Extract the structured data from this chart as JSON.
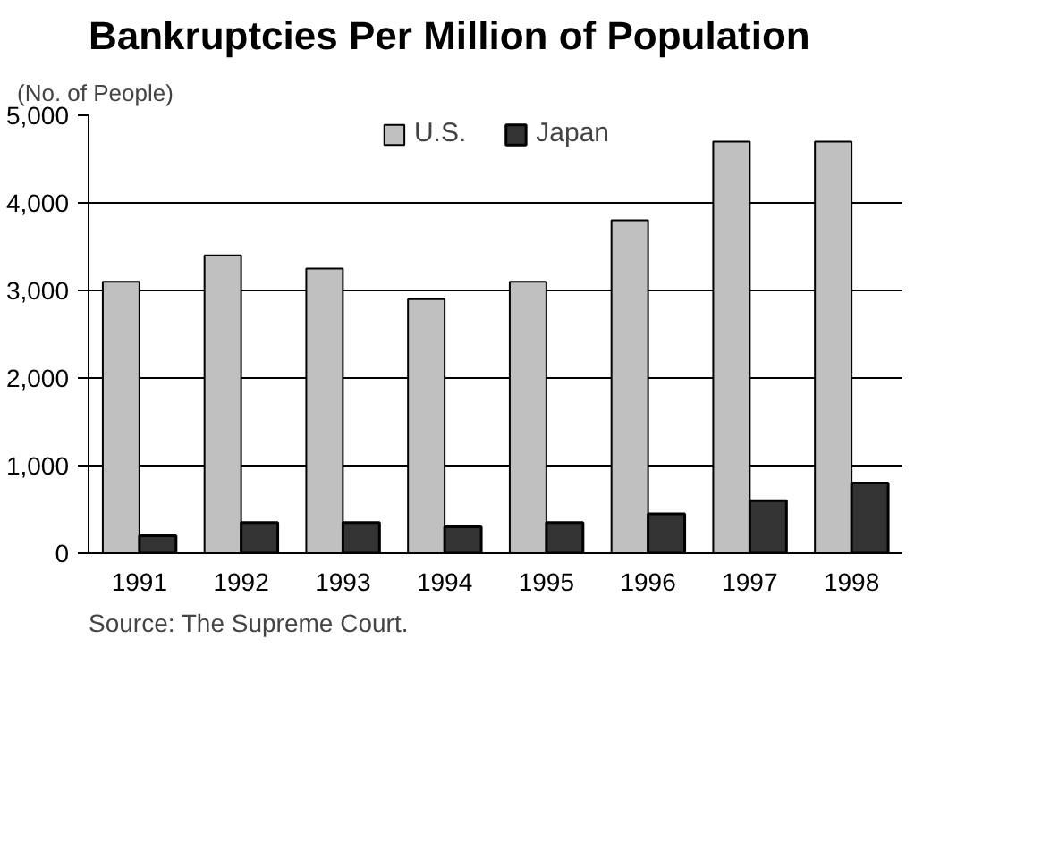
{
  "chart_data": {
    "type": "bar",
    "title": "Bankruptcies Per Million of Population",
    "ylabel": "(No. of People)",
    "categories": [
      "1991",
      "1992",
      "1993",
      "1994",
      "1995",
      "1996",
      "1997",
      "1998"
    ],
    "series": [
      {
        "name": "U.S.",
        "color": "#c0c0c0",
        "values": [
          3100,
          3400,
          3250,
          2900,
          3100,
          3800,
          4700,
          4700
        ]
      },
      {
        "name": "Japan",
        "color": "#333333",
        "values": [
          200,
          350,
          350,
          300,
          350,
          450,
          600,
          800
        ]
      }
    ],
    "ylim": [
      0,
      5000
    ],
    "yticks": [
      {
        "value": 0,
        "label": "0"
      },
      {
        "value": 1000,
        "label": "1,000"
      },
      {
        "value": 2000,
        "label": "2,000"
      },
      {
        "value": 3000,
        "label": "3,000"
      },
      {
        "value": 4000,
        "label": "4,000"
      },
      {
        "value": 5000,
        "label": "5,000"
      }
    ],
    "grid": "y",
    "legend": "top",
    "annotations": [
      "Source: The Supreme Court."
    ]
  }
}
